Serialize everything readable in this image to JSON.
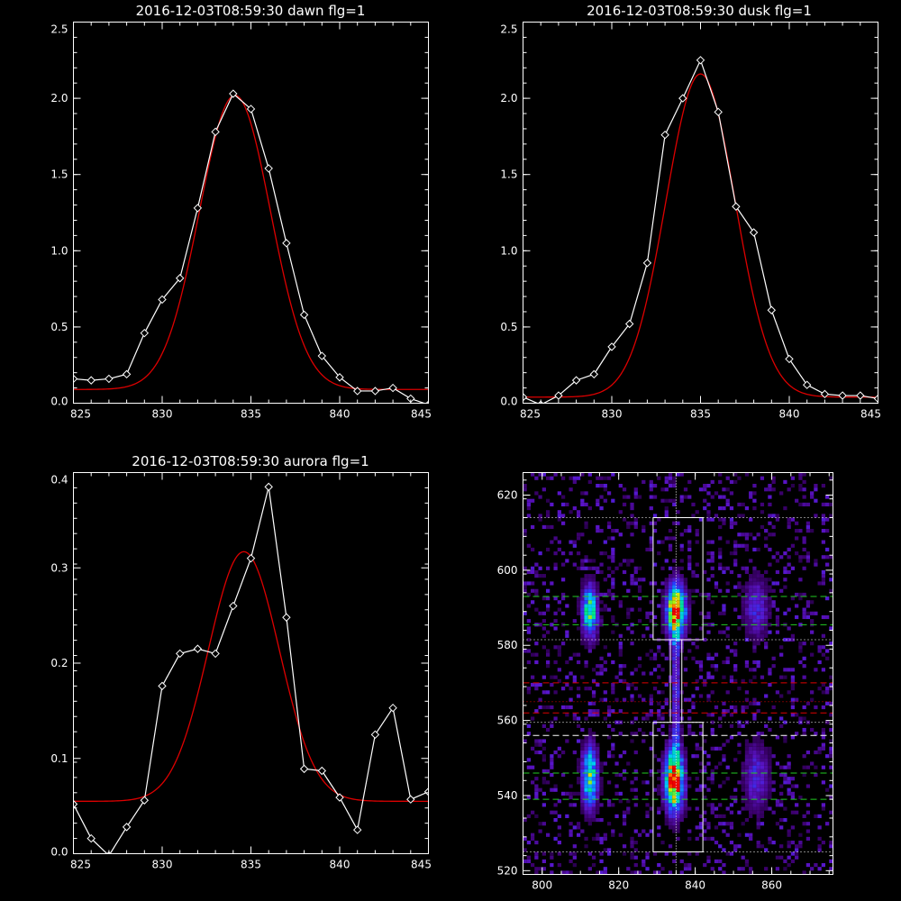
{
  "colors": {
    "background": "#000000",
    "axes": "#ffffff",
    "data_line": "#ffffff",
    "fit_line": "#dd0000"
  },
  "chart_data": [
    {
      "type": "line",
      "title": "2016-12-03T08:59:30 dawn flg=1",
      "xlim": [
        825,
        845
      ],
      "ylim": [
        0,
        2.5
      ],
      "xticks": [
        "825",
        "830",
        "835",
        "840",
        "845"
      ],
      "yticks": [
        "0.0",
        "0.5",
        "1.0",
        "1.5",
        "2.0",
        "2.5"
      ],
      "series": [
        {
          "kind": "data",
          "marker": "diamond",
          "x": [
            825,
            826,
            827,
            828,
            829,
            830,
            831,
            832,
            833,
            834,
            835,
            836,
            837,
            838,
            839,
            840,
            841,
            842,
            843,
            844,
            845
          ],
          "y": [
            0.16,
            0.15,
            0.16,
            0.19,
            0.46,
            0.68,
            0.82,
            1.28,
            1.78,
            2.03,
            1.93,
            1.54,
            1.05,
            0.58,
            0.31,
            0.17,
            0.08,
            0.08,
            0.1,
            0.03,
            -0.01
          ]
        },
        {
          "kind": "fit",
          "gauss": {
            "a": 1.93,
            "mu": 834.1,
            "sigma": 2.0,
            "c": 0.09
          }
        }
      ]
    },
    {
      "type": "line",
      "title": "2016-12-03T08:59:30 dusk flg=1",
      "xlim": [
        825,
        845
      ],
      "ylim": [
        0,
        2.5
      ],
      "xticks": [
        "825",
        "830",
        "835",
        "840",
        "845"
      ],
      "yticks": [
        "0.0",
        "0.5",
        "1.0",
        "1.5",
        "2.0",
        "2.5"
      ],
      "series": [
        {
          "kind": "data",
          "marker": "diamond",
          "x": [
            825,
            826,
            827,
            828,
            829,
            830,
            831,
            832,
            833,
            834,
            835,
            836,
            837,
            838,
            839,
            840,
            841,
            842,
            843,
            844,
            845
          ],
          "y": [
            0.04,
            -0.01,
            0.05,
            0.15,
            0.19,
            0.37,
            0.52,
            0.92,
            1.76,
            2.0,
            2.25,
            1.91,
            1.29,
            1.12,
            0.61,
            0.29,
            0.12,
            0.06,
            0.05,
            0.05,
            0.03
          ]
        },
        {
          "kind": "fit",
          "gauss": {
            "a": 2.12,
            "mu": 835.0,
            "sigma": 1.95,
            "c": 0.04
          }
        }
      ]
    },
    {
      "type": "line",
      "title": "2016-12-03T08:59:30 aurora flg=1",
      "xlim": [
        825,
        845
      ],
      "ylim": [
        0,
        0.4
      ],
      "xticks": [
        "825",
        "830",
        "835",
        "840",
        "845"
      ],
      "yticks": [
        "0.0",
        "0.1",
        "0.2",
        "0.3",
        "0.4"
      ],
      "series": [
        {
          "kind": "data",
          "marker": "diamond",
          "x": [
            825,
            826,
            827,
            828,
            829,
            830,
            831,
            832,
            833,
            834,
            835,
            836,
            837,
            838,
            839,
            840,
            841,
            842,
            843,
            844,
            845
          ],
          "y": [
            0.052,
            0.016,
            -0.002,
            0.028,
            0.056,
            0.176,
            0.21,
            0.215,
            0.21,
            0.26,
            0.31,
            0.385,
            0.248,
            0.089,
            0.087,
            0.059,
            0.025,
            0.125,
            0.153,
            0.057,
            0.065
          ]
        },
        {
          "kind": "fit",
          "gauss": {
            "a": 0.262,
            "mu": 834.6,
            "sigma": 2.0,
            "c": 0.055
          }
        }
      ]
    },
    {
      "type": "heatmap",
      "title": "",
      "xlim": [
        795,
        876
      ],
      "ylim": [
        519,
        626
      ],
      "xticks": [
        "800",
        "820",
        "840",
        "860"
      ],
      "yticks": [
        "520",
        "540",
        "560",
        "580",
        "600",
        "620"
      ],
      "blobs": [
        {
          "x": 835,
          "y": 589,
          "sx": 1.8,
          "sy": 5,
          "amp": 1.0
        },
        {
          "x": 834.5,
          "y": 544,
          "sx": 1.8,
          "sy": 6,
          "amp": 1.0
        },
        {
          "x": 812.5,
          "y": 589,
          "sx": 1.5,
          "sy": 5,
          "amp": 0.7
        },
        {
          "x": 812.5,
          "y": 545,
          "sx": 1.5,
          "sy": 6,
          "amp": 0.72
        },
        {
          "x": 835,
          "y": 567,
          "sx": 0.8,
          "sy": 14,
          "amp": 0.35
        },
        {
          "x": 856,
          "y": 590,
          "sx": 2.5,
          "sy": 6,
          "amp": 0.3
        },
        {
          "x": 856,
          "y": 545,
          "sx": 2.5,
          "sy": 7,
          "amp": 0.3
        }
      ],
      "vline": {
        "x": 835
      },
      "boxes": [
        {
          "x0": 829,
          "x1": 842,
          "y0": 581.5,
          "y1": 614
        },
        {
          "x0": 829,
          "x1": 842,
          "y0": 525,
          "y1": 559.5
        }
      ],
      "hlines": [
        {
          "y": 614,
          "style": "dotted",
          "color": "#ffffff"
        },
        {
          "y": 593,
          "style": "dashed",
          "color": "#22cc22"
        },
        {
          "y": 585.5,
          "style": "dashed",
          "color": "#22cc22"
        },
        {
          "y": 581.5,
          "style": "dotted",
          "color": "#ffffff"
        },
        {
          "y": 570,
          "style": "dashed",
          "color": "#dd0000"
        },
        {
          "y": 565,
          "style": "dotted",
          "color": "#dd0000"
        },
        {
          "y": 562,
          "style": "dashed",
          "color": "#dd0000"
        },
        {
          "y": 559.5,
          "style": "dotted",
          "color": "#ffffff"
        },
        {
          "y": 556,
          "style": "dashed",
          "color": "#ffffff"
        },
        {
          "y": 546,
          "style": "dashed",
          "color": "#22cc22"
        },
        {
          "y": 539,
          "style": "dashed",
          "color": "#22cc22"
        },
        {
          "y": 525,
          "style": "dotted",
          "color": "#ffffff"
        }
      ]
    }
  ]
}
